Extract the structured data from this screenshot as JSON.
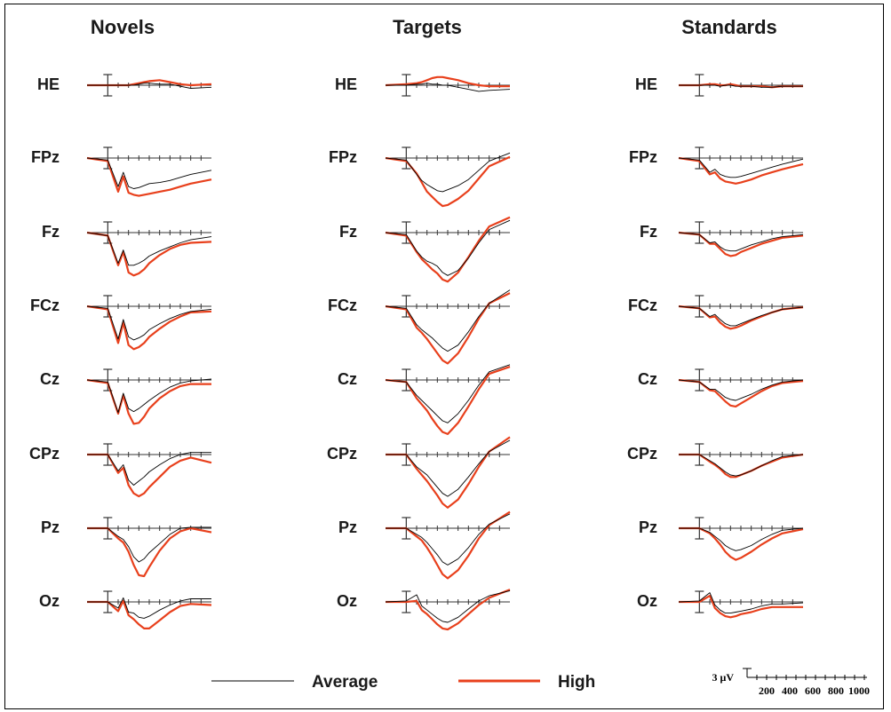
{
  "chart_data": {
    "type": "line",
    "columns": [
      "Novels",
      "Targets",
      "Standards"
    ],
    "channels": [
      "HE",
      "FPz",
      "Fz",
      "FCz",
      "Cz",
      "CPz",
      "Pz",
      "Oz"
    ],
    "legend": [
      {
        "name": "Average",
        "color": "#000000"
      },
      {
        "name": "High",
        "color": "#e8401c"
      }
    ],
    "scale_bar": {
      "amplitude_label": "3 μV",
      "time_ticks": [
        "200",
        "400",
        "600",
        "800",
        "1000"
      ]
    },
    "time_points_ms": [
      -200,
      0,
      100,
      150,
      200,
      250,
      300,
      350,
      400,
      500,
      600,
      700,
      800,
      1000
    ],
    "series": {
      "Novels": {
        "HE": {
          "Average": [
            0,
            0,
            0,
            0,
            0,
            0,
            0.1,
            0.2,
            0.2,
            0.1,
            0.1,
            -0.1,
            -0.3,
            -0.2
          ],
          "High": [
            0,
            0,
            0,
            0,
            0,
            0.1,
            0.2,
            0.3,
            0.4,
            0.5,
            0.3,
            0.1,
            0,
            0.1
          ]
        },
        "FPz": {
          "Average": [
            0,
            -0.2,
            -2.8,
            -1.4,
            -2.8,
            -3.0,
            -2.9,
            -2.7,
            -2.5,
            -2.4,
            -2.2,
            -1.9,
            -1.6,
            -1.2
          ],
          "High": [
            0,
            -0.3,
            -3.3,
            -1.8,
            -3.4,
            -3.6,
            -3.7,
            -3.6,
            -3.5,
            -3.3,
            -3.1,
            -2.8,
            -2.5,
            -2.1
          ]
        },
        "Fz": {
          "Average": [
            0,
            -0.3,
            -3.0,
            -1.7,
            -3.2,
            -3.2,
            -3.0,
            -2.7,
            -2.3,
            -1.8,
            -1.4,
            -1.0,
            -0.7,
            -0.4
          ],
          "High": [
            0,
            -0.3,
            -3.2,
            -1.9,
            -3.9,
            -4.2,
            -4.0,
            -3.6,
            -3.0,
            -2.2,
            -1.6,
            -1.2,
            -1.0,
            -0.9
          ]
        },
        "FCz": {
          "Average": [
            0,
            -0.2,
            -3.2,
            -1.3,
            -3.0,
            -3.3,
            -3.1,
            -2.8,
            -2.3,
            -1.7,
            -1.2,
            -0.8,
            -0.5,
            -0.3
          ],
          "High": [
            0,
            -0.3,
            -3.6,
            -1.6,
            -3.8,
            -4.2,
            -4.0,
            -3.6,
            -3.0,
            -2.2,
            -1.5,
            -1.0,
            -0.6,
            -0.5
          ]
        },
        "Cz": {
          "Average": [
            0,
            -0.2,
            -3.2,
            -1.3,
            -2.8,
            -3.1,
            -2.8,
            -2.4,
            -2.0,
            -1.3,
            -0.7,
            -0.3,
            -0.1,
            0.1
          ],
          "High": [
            0,
            -0.3,
            -3.3,
            -1.5,
            -3.3,
            -4.3,
            -4.2,
            -3.6,
            -2.8,
            -1.8,
            -1.1,
            -0.6,
            -0.4,
            -0.4
          ]
        },
        "CPz": {
          "Average": [
            0,
            0,
            -1.6,
            -1.0,
            -2.5,
            -3.0,
            -2.6,
            -2.2,
            -1.7,
            -1.0,
            -0.4,
            0,
            0.2,
            0.2
          ],
          "High": [
            0,
            0,
            -1.8,
            -1.3,
            -3.0,
            -3.8,
            -4.1,
            -3.8,
            -3.2,
            -2.2,
            -1.2,
            -0.6,
            -0.3,
            -0.8
          ]
        },
        "Pz": {
          "Average": [
            0,
            0,
            -0.8,
            -1.1,
            -1.8,
            -2.8,
            -3.3,
            -3.0,
            -2.4,
            -1.5,
            -0.6,
            0,
            0.1,
            0.1
          ],
          "High": [
            0,
            0,
            -1.0,
            -1.4,
            -2.3,
            -3.6,
            -4.6,
            -4.7,
            -3.8,
            -2.2,
            -1.0,
            -0.3,
            0,
            -0.4
          ]
        },
        "Oz": {
          "Average": [
            0,
            0,
            -0.6,
            0.4,
            -1.0,
            -1.1,
            -1.5,
            -1.6,
            -1.4,
            -0.8,
            -0.3,
            0.1,
            0.3,
            0.3
          ],
          "High": [
            0,
            0,
            -0.9,
            0.1,
            -1.3,
            -1.7,
            -2.2,
            -2.6,
            -2.6,
            -1.8,
            -1.0,
            -0.4,
            -0.2,
            -0.3
          ]
        }
      },
      "Targets": {
        "HE": {
          "Average": [
            0,
            0,
            0.1,
            0.1,
            0.2,
            0.1,
            0.1,
            0,
            0,
            -0.2,
            -0.4,
            -0.6,
            -0.5,
            -0.4
          ],
          "High": [
            0,
            0.1,
            0.2,
            0.3,
            0.5,
            0.7,
            0.8,
            0.8,
            0.7,
            0.5,
            0.2,
            0,
            -0.1,
            -0.1
          ]
        },
        "FPz": {
          "Average": [
            0,
            -0.2,
            -1.6,
            -2.2,
            -2.6,
            -2.9,
            -3.2,
            -3.3,
            -3.1,
            -2.7,
            -2.1,
            -1.2,
            -0.3,
            0.5
          ],
          "High": [
            0,
            -0.3,
            -1.5,
            -2.4,
            -3.3,
            -3.8,
            -4.3,
            -4.7,
            -4.6,
            -4.0,
            -3.2,
            -2.0,
            -0.8,
            0.1
          ]
        },
        "Fz": {
          "Average": [
            0,
            -0.2,
            -1.8,
            -2.4,
            -2.8,
            -3.0,
            -3.3,
            -3.9,
            -4.2,
            -3.7,
            -2.5,
            -1.0,
            0.3,
            1.2
          ],
          "High": [
            0,
            -0.3,
            -1.9,
            -2.6,
            -3.1,
            -3.6,
            -4.0,
            -4.6,
            -4.8,
            -3.9,
            -2.4,
            -0.8,
            0.6,
            1.5
          ]
        },
        "FCz": {
          "Average": [
            0,
            -0.2,
            -1.8,
            -2.3,
            -2.7,
            -3.1,
            -3.6,
            -4.1,
            -4.4,
            -3.8,
            -2.5,
            -1.0,
            0.3,
            1.6
          ],
          "High": [
            0,
            -0.3,
            -2.1,
            -2.6,
            -3.2,
            -3.9,
            -4.6,
            -5.3,
            -5.6,
            -4.6,
            -3.0,
            -1.2,
            0.3,
            1.3
          ]
        },
        "Cz": {
          "Average": [
            0,
            -0.2,
            -1.5,
            -2.0,
            -2.5,
            -3.0,
            -3.5,
            -4.0,
            -4.2,
            -3.3,
            -2.0,
            -0.5,
            0.8,
            1.5
          ],
          "High": [
            0,
            -0.2,
            -1.8,
            -2.4,
            -3.0,
            -3.8,
            -4.5,
            -5.1,
            -5.3,
            -4.2,
            -2.6,
            -0.9,
            0.6,
            1.3
          ]
        },
        "CPz": {
          "Average": [
            0,
            0,
            -1.2,
            -1.6,
            -2.0,
            -2.6,
            -3.2,
            -3.8,
            -4.1,
            -3.4,
            -2.2,
            -0.9,
            0.3,
            1.4
          ],
          "High": [
            0,
            0,
            -1.4,
            -2.0,
            -2.6,
            -3.3,
            -4.0,
            -4.8,
            -5.2,
            -4.4,
            -2.9,
            -1.2,
            0.3,
            1.7
          ]
        },
        "Pz": {
          "Average": [
            0,
            0,
            -0.6,
            -0.9,
            -1.4,
            -2.0,
            -2.6,
            -3.3,
            -3.6,
            -3.0,
            -1.9,
            -0.6,
            0.4,
            1.4
          ],
          "High": [
            0,
            0,
            -0.8,
            -1.2,
            -1.9,
            -2.7,
            -3.6,
            -4.5,
            -4.9,
            -4.1,
            -2.7,
            -1.0,
            0.3,
            1.6
          ]
        },
        "Oz": {
          "Average": [
            0,
            0.1,
            0.7,
            -0.4,
            -0.8,
            -1.2,
            -1.6,
            -1.9,
            -2.0,
            -1.5,
            -0.7,
            0.1,
            0.6,
            1.1
          ],
          "High": [
            0,
            0,
            0.1,
            -0.8,
            -1.2,
            -1.7,
            -2.2,
            -2.6,
            -2.7,
            -2.1,
            -1.2,
            -0.3,
            0.4,
            1.2
          ]
        }
      },
      "Standards": {
        "HE": {
          "Average": [
            0,
            0,
            0,
            0,
            -0.1,
            0,
            0,
            -0.1,
            -0.1,
            -0.1,
            -0.2,
            -0.2,
            -0.1,
            -0.1
          ],
          "High": [
            0,
            0,
            0.1,
            0.1,
            0,
            0,
            0.1,
            0,
            -0.1,
            -0.1,
            -0.1,
            -0.2,
            -0.1,
            -0.1
          ]
        },
        "FPz": {
          "Average": [
            0,
            -0.2,
            -1.4,
            -1.1,
            -1.6,
            -1.8,
            -1.9,
            -1.9,
            -1.8,
            -1.5,
            -1.2,
            -0.9,
            -0.6,
            -0.1
          ],
          "High": [
            0,
            -0.3,
            -1.6,
            -1.4,
            -2.0,
            -2.3,
            -2.4,
            -2.5,
            -2.4,
            -2.1,
            -1.7,
            -1.4,
            -1.1,
            -0.6
          ]
        },
        "Fz": {
          "Average": [
            0,
            -0.2,
            -1.0,
            -0.9,
            -1.4,
            -1.7,
            -1.8,
            -1.8,
            -1.6,
            -1.2,
            -0.9,
            -0.6,
            -0.4,
            -0.2
          ],
          "High": [
            0,
            -0.2,
            -1.1,
            -1.1,
            -1.6,
            -2.1,
            -2.3,
            -2.2,
            -1.9,
            -1.5,
            -1.1,
            -0.8,
            -0.5,
            -0.3
          ]
        },
        "FCz": {
          "Average": [
            0,
            -0.2,
            -1.0,
            -0.8,
            -1.3,
            -1.7,
            -1.9,
            -1.9,
            -1.7,
            -1.3,
            -0.9,
            -0.6,
            -0.3,
            -0.1
          ],
          "High": [
            0,
            -0.2,
            -1.1,
            -1.0,
            -1.6,
            -2.0,
            -2.2,
            -2.1,
            -1.9,
            -1.4,
            -1.0,
            -0.6,
            -0.3,
            -0.1
          ]
        },
        "Cz": {
          "Average": [
            0,
            -0.2,
            -0.9,
            -0.9,
            -1.3,
            -1.7,
            -1.9,
            -2.0,
            -1.8,
            -1.4,
            -0.9,
            -0.5,
            -0.2,
            0
          ],
          "High": [
            0,
            -0.2,
            -1.0,
            -1.1,
            -1.6,
            -2.1,
            -2.5,
            -2.6,
            -2.3,
            -1.7,
            -1.1,
            -0.6,
            -0.3,
            -0.1
          ]
        },
        "CPz": {
          "Average": [
            0,
            0,
            -0.6,
            -0.9,
            -1.3,
            -1.7,
            -2.0,
            -2.1,
            -2.0,
            -1.6,
            -1.1,
            -0.6,
            -0.2,
            0
          ],
          "High": [
            0,
            0,
            -0.7,
            -1.0,
            -1.4,
            -1.9,
            -2.2,
            -2.2,
            -2.0,
            -1.6,
            -1.1,
            -0.7,
            -0.3,
            0
          ]
        },
        "Pz": {
          "Average": [
            0,
            0,
            -0.4,
            -0.8,
            -1.2,
            -1.7,
            -2.0,
            -2.2,
            -2.1,
            -1.7,
            -1.1,
            -0.6,
            -0.2,
            0
          ],
          "High": [
            0,
            0,
            -0.5,
            -1.0,
            -1.6,
            -2.3,
            -2.8,
            -3.1,
            -2.9,
            -2.3,
            -1.6,
            -1.0,
            -0.5,
            -0.1
          ]
        },
        "Oz": {
          "Average": [
            0,
            0.1,
            0.9,
            -0.3,
            -0.8,
            -1.1,
            -1.1,
            -1.0,
            -0.9,
            -0.7,
            -0.4,
            -0.2,
            -0.2,
            -0.1
          ],
          "High": [
            0,
            0,
            0.6,
            -0.6,
            -1.1,
            -1.4,
            -1.5,
            -1.4,
            -1.2,
            -1.0,
            -0.7,
            -0.5,
            -0.5,
            -0.5
          ]
        }
      }
    }
  }
}
